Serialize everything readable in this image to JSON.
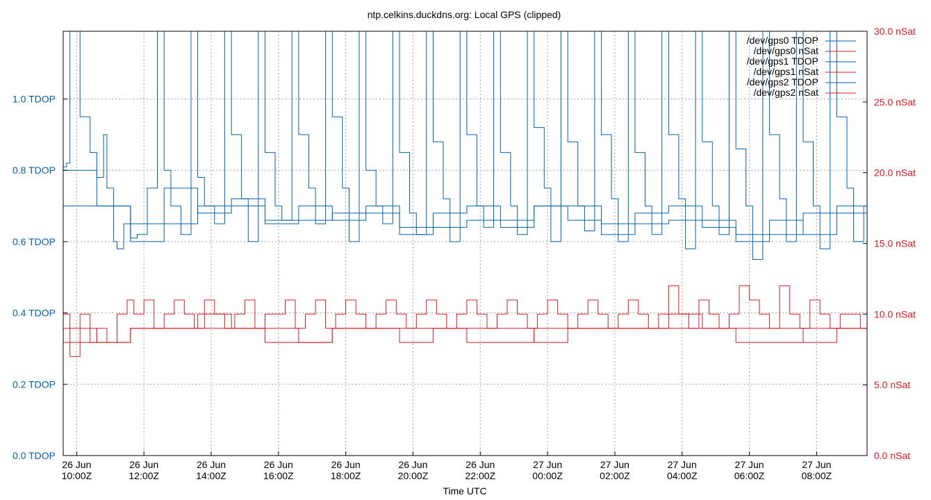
{
  "chart_data": {
    "type": "line",
    "title": "ntp.celkins.duckdns.org: Local GPS (clipped)",
    "xlabel": "Time UTC",
    "ylabel_left_unit": "TDOP",
    "ylabel_right_unit": "nSat",
    "xlim_hours": [
      0,
      23.9
    ],
    "ylim_left": [
      0,
      1.19
    ],
    "ylim_right": [
      0,
      30
    ],
    "grid": true,
    "legend_position": "top-right",
    "x_ticks": [
      {
        "hour": 0.4,
        "line1": "26 Jun",
        "line2": "10:00Z"
      },
      {
        "hour": 2.4,
        "line1": "26 Jun",
        "line2": "12:00Z"
      },
      {
        "hour": 4.4,
        "line1": "26 Jun",
        "line2": "14:00Z"
      },
      {
        "hour": 6.4,
        "line1": "26 Jun",
        "line2": "16:00Z"
      },
      {
        "hour": 8.4,
        "line1": "26 Jun",
        "line2": "18:00Z"
      },
      {
        "hour": 10.4,
        "line1": "26 Jun",
        "line2": "20:00Z"
      },
      {
        "hour": 12.4,
        "line1": "26 Jun",
        "line2": "22:00Z"
      },
      {
        "hour": 14.4,
        "line1": "27 Jun",
        "line2": "00:00Z"
      },
      {
        "hour": 16.4,
        "line1": "27 Jun",
        "line2": "02:00Z"
      },
      {
        "hour": 18.4,
        "line1": "27 Jun",
        "line2": "04:00Z"
      },
      {
        "hour": 20.4,
        "line1": "27 Jun",
        "line2": "06:00Z"
      },
      {
        "hour": 22.4,
        "line1": "27 Jun",
        "line2": "08:00Z"
      }
    ],
    "y_left_ticks": [
      {
        "value": 0.0,
        "label": "0.0 TDOP"
      },
      {
        "value": 0.2,
        "label": "0.2 TDOP"
      },
      {
        "value": 0.4,
        "label": "0.4 TDOP"
      },
      {
        "value": 0.6,
        "label": "0.6 TDOP"
      },
      {
        "value": 0.8,
        "label": "0.8 TDOP"
      },
      {
        "value": 1.0,
        "label": "1.0 TDOP"
      }
    ],
    "y_right_ticks": [
      {
        "value": 0,
        "label": "0.0 nSat"
      },
      {
        "value": 5,
        "label": "5.0 nSat"
      },
      {
        "value": 10,
        "label": "10.0 nSat"
      },
      {
        "value": 15,
        "label": "15.0 nSat"
      },
      {
        "value": 20,
        "label": "20.0 nSat"
      },
      {
        "value": 25,
        "label": "25.0 nSat"
      },
      {
        "value": 30,
        "label": "30.0 nSat"
      }
    ],
    "series": [
      {
        "name": "/dev/gps0 TDOP",
        "axis": "left",
        "color": "#0060ad",
        "x": [
          0,
          0.1,
          0.2,
          0.5,
          0.8,
          1.0,
          1.2,
          1.3,
          1.5,
          1.6,
          1.8,
          2.0,
          2.2,
          2.5,
          2.8,
          3.0,
          3.2,
          3.5,
          3.8,
          4.0,
          4.2,
          4.5,
          4.8,
          5.0,
          5.3,
          5.5,
          5.8,
          6.0,
          6.3,
          6.5,
          6.8,
          7.0,
          7.3,
          7.5,
          7.8,
          8.0,
          8.3,
          8.5,
          8.8,
          9.0,
          9.3,
          9.5,
          9.8,
          10.0,
          10.3,
          10.5,
          10.8,
          11.0,
          11.3,
          11.5,
          11.8,
          12.0,
          12.3,
          12.5,
          12.8,
          13.0,
          13.3,
          13.5,
          13.8,
          14.0,
          14.3,
          14.5,
          14.8,
          15.0,
          15.3,
          15.5,
          15.8,
          16.0,
          16.3,
          16.5,
          16.8,
          17.0,
          17.3,
          17.5,
          17.8,
          18.0,
          18.3,
          18.5,
          18.8,
          19.0,
          19.3,
          19.5,
          19.8,
          20.0,
          20.3,
          20.5,
          20.8,
          21.0,
          21.3,
          21.5,
          21.8,
          22.0,
          22.3,
          22.5,
          22.8,
          23.0,
          23.3,
          23.5,
          23.8,
          23.9
        ],
        "values": [
          0.81,
          0.82,
          1.19,
          0.95,
          0.85,
          0.78,
          0.9,
          0.75,
          0.6,
          0.58,
          0.65,
          0.61,
          0.62,
          0.75,
          1.19,
          0.8,
          0.7,
          0.62,
          1.19,
          0.78,
          0.7,
          0.65,
          1.19,
          0.9,
          0.72,
          0.6,
          1.19,
          0.85,
          0.7,
          0.66,
          1.19,
          0.9,
          0.75,
          0.65,
          1.19,
          0.95,
          0.75,
          0.6,
          1.19,
          0.8,
          0.7,
          0.65,
          1.19,
          0.85,
          0.68,
          0.62,
          1.19,
          0.88,
          0.72,
          0.6,
          1.19,
          0.9,
          0.7,
          0.64,
          1.19,
          0.85,
          0.7,
          0.62,
          1.19,
          0.92,
          0.75,
          0.6,
          1.19,
          0.88,
          0.7,
          0.63,
          1.19,
          0.9,
          0.72,
          0.6,
          1.19,
          0.85,
          0.7,
          0.62,
          1.19,
          0.9,
          0.72,
          0.58,
          1.19,
          0.88,
          0.7,
          0.62,
          1.19,
          0.86,
          0.7,
          0.55,
          1.19,
          0.9,
          0.72,
          0.6,
          1.19,
          0.88,
          0.7,
          0.58,
          1.19,
          0.95,
          0.75,
          0.6,
          0.7,
          0.8
        ]
      },
      {
        "name": "/dev/gps0 nSat",
        "axis": "right",
        "color": "#dd181f",
        "x": [
          0,
          0.2,
          0.5,
          0.8,
          1.0,
          1.3,
          1.6,
          1.9,
          2.1,
          2.4,
          2.7,
          3.0,
          3.3,
          3.6,
          3.9,
          4.2,
          4.5,
          4.8,
          5.1,
          5.4,
          5.7,
          6.0,
          6.3,
          6.6,
          6.9,
          7.2,
          7.5,
          7.8,
          8.1,
          8.4,
          8.7,
          9.0,
          9.3,
          9.6,
          9.9,
          10.2,
          10.5,
          10.8,
          11.1,
          11.4,
          11.7,
          12.0,
          12.3,
          12.6,
          12.9,
          13.2,
          13.5,
          13.8,
          14.1,
          14.4,
          14.7,
          15.0,
          15.3,
          15.6,
          15.9,
          16.2,
          16.5,
          16.8,
          17.1,
          17.4,
          17.7,
          18.0,
          18.3,
          18.6,
          18.9,
          19.2,
          19.5,
          19.8,
          20.1,
          20.4,
          20.7,
          21.0,
          21.3,
          21.6,
          21.9,
          22.2,
          22.5,
          22.8,
          23.1,
          23.4,
          23.7,
          23.9
        ],
        "values": [
          10,
          7,
          10,
          8,
          9,
          8,
          10,
          11,
          10,
          11,
          9,
          10,
          11,
          10,
          9,
          11,
          10,
          9,
          10,
          11,
          9,
          10,
          10,
          11,
          9,
          10,
          11,
          9,
          10,
          11,
          10,
          9,
          10,
          11,
          10,
          9,
          10,
          11,
          10,
          9,
          10,
          11,
          10,
          9,
          10,
          11,
          10,
          9,
          10,
          11,
          10,
          9,
          10,
          11,
          10,
          9,
          10,
          11,
          10,
          9,
          10,
          12,
          10,
          9,
          11,
          10,
          9,
          10,
          12,
          11,
          10,
          9,
          12,
          10,
          9,
          11,
          10,
          9,
          10,
          10,
          9,
          10
        ]
      },
      {
        "name": "/dev/gps1 TDOP",
        "axis": "left",
        "color": "#0060ad",
        "x": [
          0,
          1,
          2,
          3,
          4,
          5,
          6,
          7,
          8,
          9,
          10,
          11,
          12,
          13,
          14,
          15,
          16,
          17,
          18,
          19,
          20,
          21,
          22,
          23,
          23.9
        ],
        "values": [
          0.8,
          0.7,
          0.6,
          0.75,
          0.68,
          0.72,
          0.65,
          0.7,
          0.66,
          0.7,
          0.62,
          0.68,
          0.7,
          0.64,
          0.7,
          0.66,
          0.62,
          0.68,
          0.7,
          0.64,
          0.6,
          0.66,
          0.62,
          0.7,
          0.8
        ]
      },
      {
        "name": "/dev/gps1 nSat",
        "axis": "right",
        "color": "#dd181f",
        "x": [
          0,
          1,
          2,
          3,
          4,
          5,
          6,
          7,
          8,
          9,
          10,
          11,
          12,
          13,
          14,
          15,
          16,
          17,
          18,
          19,
          20,
          21,
          22,
          23,
          23.9
        ],
        "values": [
          9,
          8,
          9,
          9,
          10,
          9,
          9,
          8,
          9,
          9,
          8,
          9,
          9,
          9,
          8,
          9,
          9,
          9,
          10,
          9,
          9,
          9,
          8,
          9,
          9
        ]
      },
      {
        "name": "/dev/gps2 TDOP",
        "axis": "left",
        "color": "#0060ad",
        "x": [
          0,
          2,
          4,
          6,
          8,
          10,
          12,
          14,
          16,
          18,
          20,
          22,
          23.9
        ],
        "values": [
          0.7,
          0.65,
          0.7,
          0.66,
          0.68,
          0.64,
          0.66,
          0.7,
          0.65,
          0.66,
          0.62,
          0.68,
          0.75
        ]
      },
      {
        "name": "/dev/gps2 nSat",
        "axis": "right",
        "color": "#dd181f",
        "x": [
          0,
          2,
          4,
          6,
          8,
          10,
          12,
          14,
          16,
          18,
          20,
          22,
          23.9
        ],
        "values": [
          8,
          9,
          9,
          8,
          9,
          9,
          8,
          9,
          9,
          9,
          8,
          9,
          9
        ]
      }
    ]
  }
}
